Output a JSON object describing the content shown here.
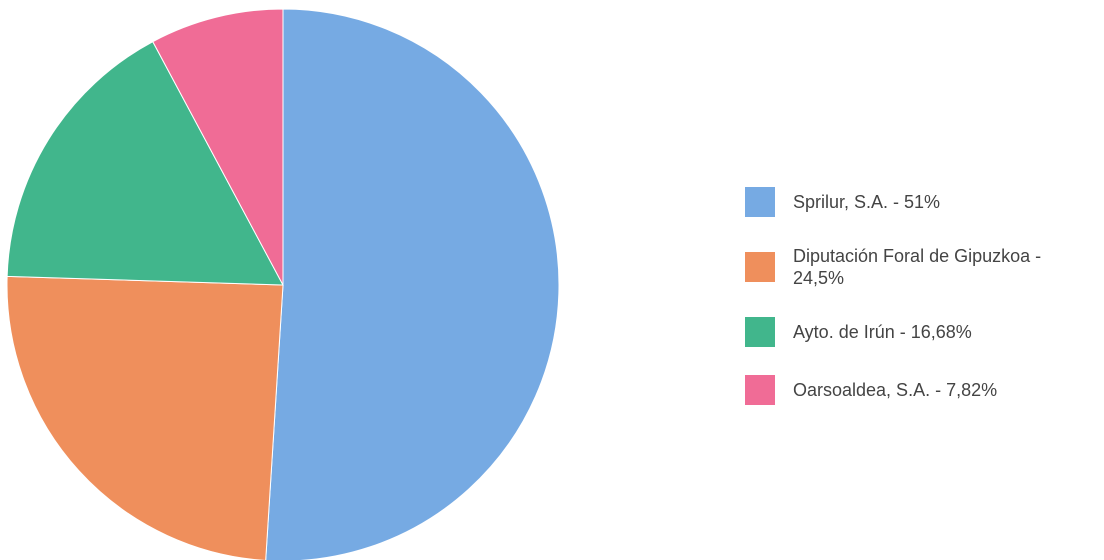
{
  "chart_data": {
    "type": "pie",
    "categories": [
      "Sprilur, S.A. - 51%",
      "Diputación Foral de Gipuzkoa - 24,5%",
      "Ayto. de Irún - 16,68%",
      "Oarsoaldea, S.A. - 7,82%"
    ],
    "values": [
      51,
      24.5,
      16.68,
      7.82
    ],
    "colors": [
      "#76aae3",
      "#ef8f5c",
      "#41b68c",
      "#f06c96"
    ],
    "legend": "right"
  }
}
